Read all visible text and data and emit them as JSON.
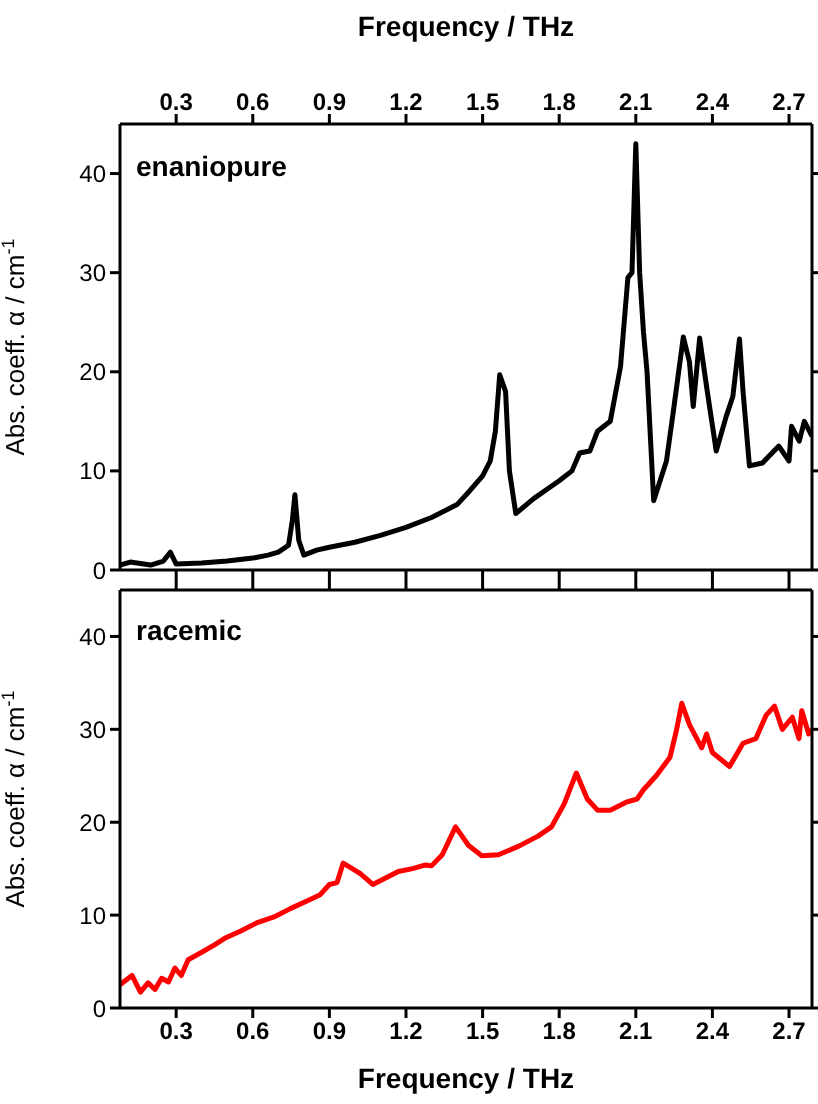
{
  "chart_data": [
    {
      "type": "line",
      "xlabel": "Frequency / THz",
      "ylabel": "Abs. coeff. α / cm$^{-1}$",
      "xlim": [
        0.08,
        2.79
      ],
      "xticks": [
        0.3,
        0.6,
        0.9,
        1.2,
        1.5,
        1.8,
        2.1,
        2.4,
        2.7
      ],
      "ylim": [
        0,
        45
      ],
      "yticks": [
        0,
        10,
        20,
        30,
        40
      ],
      "marker": "none",
      "line_style": "solid",
      "series": [
        {
          "name": "enaniopure",
          "color": "#000000",
          "x": [
            0.08,
            0.12,
            0.2,
            0.25,
            0.277,
            0.3,
            0.4,
            0.5,
            0.6,
            0.66,
            0.7,
            0.74,
            0.755,
            0.765,
            0.78,
            0.8,
            0.85,
            0.9,
            1.0,
            1.1,
            1.2,
            1.3,
            1.4,
            1.45,
            1.5,
            1.53,
            1.55,
            1.567,
            1.59,
            1.605,
            1.63,
            1.7,
            1.8,
            1.85,
            1.88,
            1.92,
            1.95,
            2.0,
            2.04,
            2.069,
            2.085,
            2.1,
            2.115,
            2.13,
            2.144,
            2.17,
            2.22,
            2.247,
            2.286,
            2.31,
            2.325,
            2.35,
            2.38,
            2.415,
            2.454,
            2.48,
            2.506,
            2.52,
            2.545,
            2.596,
            2.66,
            2.7,
            2.71,
            2.74,
            2.76,
            2.79
          ],
          "values": [
            0.5,
            0.8,
            0.5,
            0.9,
            1.8,
            0.6,
            0.7,
            0.9,
            1.2,
            1.5,
            1.8,
            2.5,
            5,
            7.6,
            3,
            1.5,
            2,
            2.3,
            2.8,
            3.5,
            4.3,
            5.3,
            6.6,
            8,
            9.5,
            11,
            14,
            19.7,
            18,
            10,
            5.7,
            7.2,
            9,
            10,
            11.8,
            12,
            14,
            15,
            20.5,
            29.5,
            30,
            43,
            30,
            24,
            20,
            7,
            11,
            16,
            23.5,
            21,
            16.5,
            23.4,
            18,
            12,
            15.5,
            17.5,
            23.3,
            18,
            10.5,
            10.8,
            12.5,
            11,
            14.5,
            13,
            15,
            13.5
          ]
        }
      ]
    },
    {
      "type": "line",
      "xlabel": "Frequency / THz",
      "ylabel": "Abs. coeff. α / cm$^{-1}$",
      "xlim": [
        0.08,
        2.79
      ],
      "xticks": [
        0.3,
        0.6,
        0.9,
        1.2,
        1.5,
        1.8,
        2.1,
        2.4,
        2.7
      ],
      "ylim": [
        0,
        45
      ],
      "yticks": [
        0,
        10,
        20,
        30,
        40
      ],
      "marker": "none",
      "line_style": "solid",
      "series": [
        {
          "name": "racemic",
          "color": "#ff0000",
          "x": [
            0.08,
            0.127,
            0.16,
            0.19,
            0.217,
            0.243,
            0.27,
            0.295,
            0.32,
            0.347,
            0.4,
            0.45,
            0.49,
            0.553,
            0.618,
            0.683,
            0.747,
            0.81,
            0.864,
            0.9,
            0.93,
            0.954,
            1.02,
            1.07,
            1.12,
            1.17,
            1.226,
            1.277,
            1.3,
            1.342,
            1.394,
            1.445,
            1.497,
            1.562,
            1.64,
            1.717,
            1.77,
            1.82,
            1.867,
            1.91,
            1.95,
            2.0,
            2.066,
            2.105,
            2.13,
            2.18,
            2.234,
            2.26,
            2.28,
            2.31,
            2.358,
            2.377,
            2.4,
            2.467,
            2.52,
            2.57,
            2.61,
            2.643,
            2.674,
            2.713,
            2.739,
            2.75,
            2.777,
            2.79
          ],
          "values": [
            2.5,
            3.5,
            1.7,
            2.7,
            2,
            3.2,
            2.8,
            4.3,
            3.5,
            5.2,
            6,
            6.8,
            7.5,
            8.3,
            9.2,
            9.8,
            10.7,
            11.5,
            12.2,
            13.3,
            13.5,
            15.6,
            14.5,
            13.3,
            14,
            14.7,
            15,
            15.4,
            15.3,
            16.5,
            19.5,
            17.5,
            16.4,
            16.5,
            17.4,
            18.5,
            19.5,
            22,
            25.3,
            22.5,
            21.3,
            21.3,
            22.2,
            22.5,
            23.5,
            25,
            27,
            30,
            32.8,
            30.5,
            28,
            29.5,
            27.5,
            26,
            28.5,
            29,
            31.5,
            32.5,
            30,
            31.3,
            29,
            32,
            29.5,
            30
          ]
        }
      ]
    }
  ]
}
